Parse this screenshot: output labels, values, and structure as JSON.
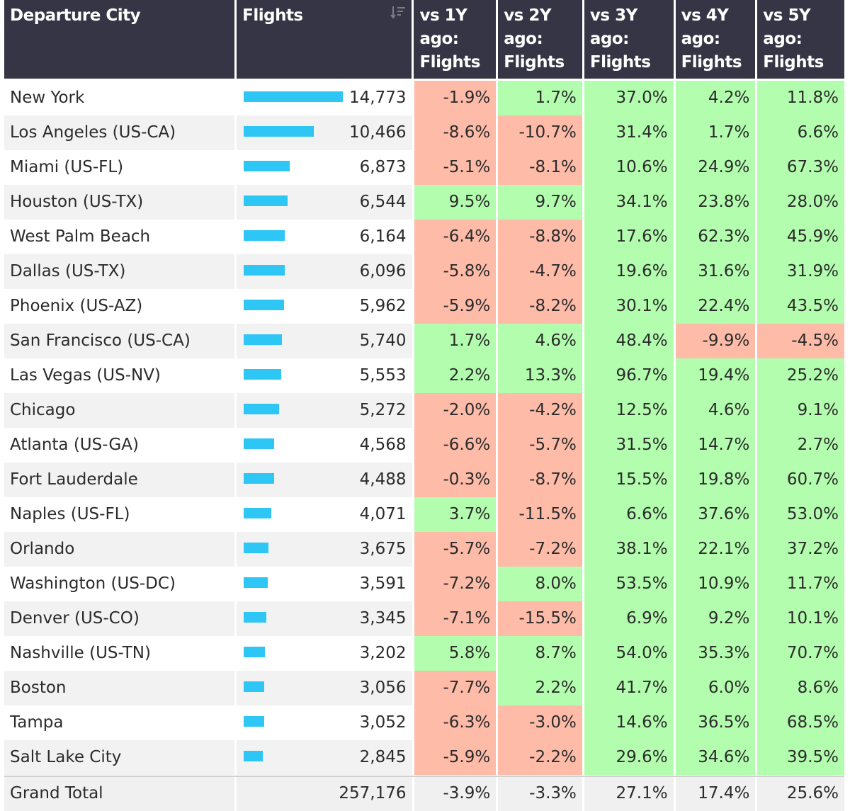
{
  "headers": {
    "city": "Departure City",
    "flights": "Flights",
    "y1": "vs 1Y ago: Flights",
    "y2": "vs 2Y ago: Flights",
    "y3": "vs 3Y ago: Flights",
    "y4": "vs 4Y ago: Flights",
    "y5": "vs 5Y ago: Flights"
  },
  "sort_icon": "sort-descending-icon",
  "colors": {
    "header_bg": "#363545",
    "bar": "#2ec6f5",
    "positive": "#b3fdae",
    "negative": "#fdbba8"
  },
  "rows": [
    {
      "city": "New York",
      "flights": "14,773",
      "flights_value": 14773,
      "y1": "-1.9%",
      "y2": "1.7%",
      "y3": "37.0%",
      "y4": "4.2%",
      "y5": "11.8%"
    },
    {
      "city": "Los Angeles (US-CA)",
      "flights": "10,466",
      "flights_value": 10466,
      "y1": "-8.6%",
      "y2": "-10.7%",
      "y3": "31.4%",
      "y4": "1.7%",
      "y5": "6.6%"
    },
    {
      "city": "Miami (US-FL)",
      "flights": "6,873",
      "flights_value": 6873,
      "y1": "-5.1%",
      "y2": "-8.1%",
      "y3": "10.6%",
      "y4": "24.9%",
      "y5": "67.3%"
    },
    {
      "city": "Houston (US-TX)",
      "flights": "6,544",
      "flights_value": 6544,
      "y1": "9.5%",
      "y2": "9.7%",
      "y3": "34.1%",
      "y4": "23.8%",
      "y5": "28.0%"
    },
    {
      "city": "West Palm Beach",
      "flights": "6,164",
      "flights_value": 6164,
      "y1": "-6.4%",
      "y2": "-8.8%",
      "y3": "17.6%",
      "y4": "62.3%",
      "y5": "45.9%"
    },
    {
      "city": "Dallas (US-TX)",
      "flights": "6,096",
      "flights_value": 6096,
      "y1": "-5.8%",
      "y2": "-4.7%",
      "y3": "19.6%",
      "y4": "31.6%",
      "y5": "31.9%"
    },
    {
      "city": "Phoenix (US-AZ)",
      "flights": "5,962",
      "flights_value": 5962,
      "y1": "-5.9%",
      "y2": "-8.2%",
      "y3": "30.1%",
      "y4": "22.4%",
      "y5": "43.5%"
    },
    {
      "city": "San Francisco (US-CA)",
      "flights": "5,740",
      "flights_value": 5740,
      "y1": "1.7%",
      "y2": "4.6%",
      "y3": "48.4%",
      "y4": "-9.9%",
      "y5": "-4.5%"
    },
    {
      "city": "Las Vegas (US-NV)",
      "flights": "5,553",
      "flights_value": 5553,
      "y1": "2.2%",
      "y2": "13.3%",
      "y3": "96.7%",
      "y4": "19.4%",
      "y5": "25.2%"
    },
    {
      "city": "Chicago",
      "flights": "5,272",
      "flights_value": 5272,
      "y1": "-2.0%",
      "y2": "-4.2%",
      "y3": "12.5%",
      "y4": "4.6%",
      "y5": "9.1%"
    },
    {
      "city": "Atlanta (US-GA)",
      "flights": "4,568",
      "flights_value": 4568,
      "y1": "-6.6%",
      "y2": "-5.7%",
      "y3": "31.5%",
      "y4": "14.7%",
      "y5": "2.7%"
    },
    {
      "city": "Fort Lauderdale",
      "flights": "4,488",
      "flights_value": 4488,
      "y1": "-0.3%",
      "y2": "-8.7%",
      "y3": "15.5%",
      "y4": "19.8%",
      "y5": "60.7%"
    },
    {
      "city": "Naples (US-FL)",
      "flights": "4,071",
      "flights_value": 4071,
      "y1": "3.7%",
      "y2": "-11.5%",
      "y3": "6.6%",
      "y4": "37.6%",
      "y5": "53.0%"
    },
    {
      "city": "Orlando",
      "flights": "3,675",
      "flights_value": 3675,
      "y1": "-5.7%",
      "y2": "-7.2%",
      "y3": "38.1%",
      "y4": "22.1%",
      "y5": "37.2%"
    },
    {
      "city": "Washington (US-DC)",
      "flights": "3,591",
      "flights_value": 3591,
      "y1": "-7.2%",
      "y2": "8.0%",
      "y3": "53.5%",
      "y4": "10.9%",
      "y5": "11.7%"
    },
    {
      "city": "Denver (US-CO)",
      "flights": "3,345",
      "flights_value": 3345,
      "y1": "-7.1%",
      "y2": "-15.5%",
      "y3": "6.9%",
      "y4": "9.2%",
      "y5": "10.1%"
    },
    {
      "city": "Nashville (US-TN)",
      "flights": "3,202",
      "flights_value": 3202,
      "y1": "5.8%",
      "y2": "8.7%",
      "y3": "54.0%",
      "y4": "35.3%",
      "y5": "70.7%"
    },
    {
      "city": "Boston",
      "flights": "3,056",
      "flights_value": 3056,
      "y1": "-7.7%",
      "y2": "2.2%",
      "y3": "41.7%",
      "y4": "6.0%",
      "y5": "8.6%"
    },
    {
      "city": "Tampa",
      "flights": "3,052",
      "flights_value": 3052,
      "y1": "-6.3%",
      "y2": "-3.0%",
      "y3": "14.6%",
      "y4": "36.5%",
      "y5": "68.5%"
    },
    {
      "city": "Salt Lake City",
      "flights": "2,845",
      "flights_value": 2845,
      "y1": "-5.9%",
      "y2": "-2.2%",
      "y3": "29.6%",
      "y4": "34.6%",
      "y5": "39.5%"
    }
  ],
  "total": {
    "label": "Grand Total",
    "flights": "257,176",
    "y1": "-3.9%",
    "y2": "-3.3%",
    "y3": "27.1%",
    "y4": "17.4%",
    "y5": "25.6%"
  }
}
